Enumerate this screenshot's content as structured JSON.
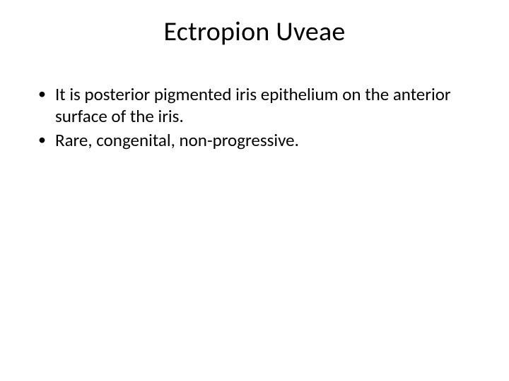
{
  "slide": {
    "title": "Ectropion Uveae",
    "bullets": [
      "It is posterior pigmented iris epithelium on the anterior surface of the iris.",
      "Rare, congenital, non-progressive."
    ],
    "style": {
      "background_color": "#ffffff",
      "text_color": "#000000",
      "title_fontsize": 38,
      "body_fontsize": 25,
      "font_family": "Calibri"
    }
  }
}
